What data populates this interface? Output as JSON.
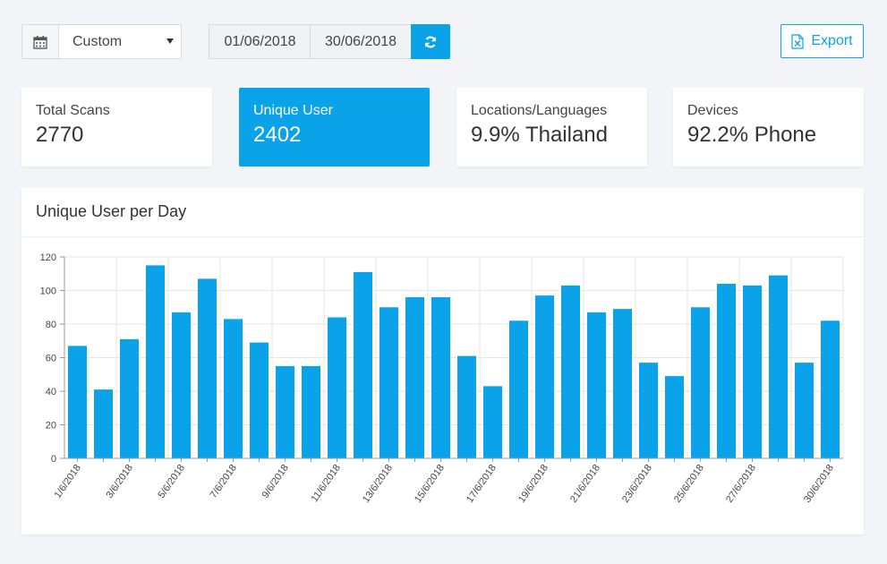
{
  "toolbar": {
    "range_value": "Custom",
    "date_from": "01/06/2018",
    "date_to": "30/06/2018",
    "export_label": "Export",
    "accent_color": "#0aa2e9"
  },
  "cards": [
    {
      "label": "Total Scans",
      "value": "2770"
    },
    {
      "label": "Unique User",
      "value": "2402"
    },
    {
      "label": "Locations/Languages",
      "value": "9.9% Thailand"
    },
    {
      "label": "Devices",
      "value": "92.2% Phone"
    }
  ],
  "chart_panel": {
    "title": "Unique User per Day"
  },
  "chart_data": {
    "type": "bar",
    "title": "Unique User per Day",
    "categories": [
      "1/6/2018",
      "2/6/2018",
      "3/6/2018",
      "4/6/2018",
      "5/6/2018",
      "6/6/2018",
      "7/6/2018",
      "8/6/2018",
      "9/6/2018",
      "10/6/2018",
      "11/6/2018",
      "12/6/2018",
      "13/6/2018",
      "14/6/2018",
      "15/6/2018",
      "16/6/2018",
      "17/6/2018",
      "18/6/2018",
      "19/6/2018",
      "20/6/2018",
      "21/6/2018",
      "22/6/2018",
      "23/6/2018",
      "24/6/2018",
      "25/6/2018",
      "26/6/2018",
      "27/6/2018",
      "28/6/2018",
      "29/6/2018",
      "30/6/2018"
    ],
    "tick_labels_shown": [
      "1/6/2018",
      "3/6/2018",
      "5/6/2018",
      "7/6/2018",
      "9/6/2018",
      "11/6/2018",
      "13/6/2018",
      "15/6/2018",
      "17/6/2018",
      "19/6/2018",
      "21/6/2018",
      "23/6/2018",
      "25/6/2018",
      "27/6/2018",
      "30/6/2018"
    ],
    "values": [
      67,
      41,
      71,
      115,
      87,
      107,
      83,
      69,
      55,
      55,
      84,
      111,
      90,
      96,
      96,
      61,
      43,
      82,
      97,
      103,
      87,
      89,
      57,
      49,
      90,
      104,
      103,
      109,
      57,
      82
    ],
    "ylim": [
      0,
      120
    ],
    "yticks": [
      0,
      20,
      40,
      60,
      80,
      100,
      120
    ],
    "grid": true,
    "bar_color": "#0aa2e9"
  }
}
